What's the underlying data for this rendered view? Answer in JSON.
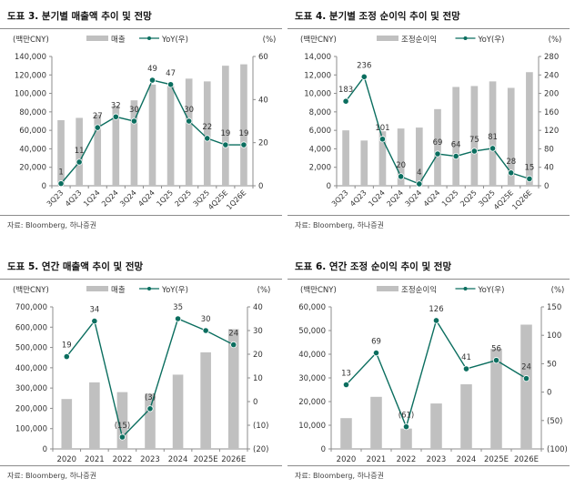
{
  "source_label": "자료: Bloomberg, 하나증권",
  "colors": {
    "bar": "#c0c0c0",
    "line": "#0b6e5f",
    "marker_stroke": "#ffffff",
    "axis": "#8c8c8c",
    "text": "#333333"
  },
  "chart_data": [
    {
      "id": "fig3",
      "type": "bar",
      "title": "도표 3. 분기별 매출액 추이 및 전망",
      "ylabel": "(백만CNY)",
      "y2label": "(%)",
      "legend": {
        "bar": "매출",
        "line": "YoY(우)",
        "placement": "top-center"
      },
      "categories": [
        "3Q23",
        "4Q23",
        "1Q24",
        "2Q24",
        "3Q24",
        "4Q24",
        "1Q25",
        "2Q25",
        "3Q25",
        "4Q25E",
        "1Q26E"
      ],
      "tick_rotate": true,
      "series": [
        {
          "name": "매출",
          "type": "bar",
          "axis": "left",
          "values": [
            71000,
            73500,
            77000,
            86500,
            92500,
            109500,
            108000,
            116000,
            113000,
            130000,
            131500
          ]
        },
        {
          "name": "YoY(우)",
          "type": "line",
          "axis": "right",
          "values": [
            1,
            11,
            27,
            32,
            30,
            49,
            47,
            30,
            22,
            19,
            19
          ],
          "labels": [
            "1",
            "11",
            "27",
            "32",
            "30",
            "49",
            "47",
            "30",
            "22",
            "19",
            "19"
          ]
        }
      ],
      "ylim": [
        0,
        140000
      ],
      "yticks": [
        0,
        20000,
        40000,
        60000,
        80000,
        100000,
        120000,
        140000
      ],
      "ytick_labels": [
        "0",
        "20,000",
        "40,000",
        "60,000",
        "80,000",
        "100,000",
        "120,000",
        "140,000"
      ],
      "y2lim": [
        0,
        60
      ],
      "y2ticks": [
        0,
        20,
        40,
        60
      ],
      "y2tick_labels": [
        "0",
        "20",
        "40",
        "60"
      ],
      "grid": false
    },
    {
      "id": "fig4",
      "type": "bar",
      "title": "도표 4. 분기별 조정 순이익 추이 및 전망",
      "ylabel": "(백만CNY)",
      "y2label": "(%)",
      "legend": {
        "bar": "조정순이익",
        "line": "YoY(우)",
        "placement": "top-center"
      },
      "categories": [
        "3Q23",
        "4Q23",
        "1Q24",
        "2Q24",
        "3Q24",
        "4Q24",
        "1Q25",
        "2Q25",
        "3Q25",
        "4Q25E",
        "1Q26E"
      ],
      "tick_rotate": true,
      "series": [
        {
          "name": "조정순이익",
          "type": "bar",
          "axis": "left",
          "values": [
            6000,
            4900,
            5900,
            6200,
            6300,
            8300,
            10700,
            10800,
            11300,
            10600,
            12300
          ]
        },
        {
          "name": "YoY(우)",
          "type": "line",
          "axis": "right",
          "values": [
            183,
            236,
            101,
            20,
            4,
            69,
            64,
            75,
            81,
            28,
            15
          ],
          "labels": [
            "183",
            "236",
            "101",
            "20",
            "4",
            "69",
            "64",
            "75",
            "81",
            "28",
            "15"
          ]
        }
      ],
      "ylim": [
        0,
        14000
      ],
      "yticks": [
        0,
        2000,
        4000,
        6000,
        8000,
        10000,
        12000,
        14000
      ],
      "ytick_labels": [
        "0",
        "2,000",
        "4,000",
        "6,000",
        "8,000",
        "10,000",
        "12,000",
        "14,000"
      ],
      "y2lim": [
        0,
        280
      ],
      "y2ticks": [
        0,
        40,
        80,
        120,
        160,
        200,
        240,
        280
      ],
      "y2tick_labels": [
        "0",
        "40",
        "80",
        "120",
        "160",
        "200",
        "240",
        "280"
      ],
      "grid": false
    },
    {
      "id": "fig5",
      "type": "bar",
      "title": "도표 5. 연간 매출액 추이 및 전망",
      "ylabel": "(백만CNY)",
      "y2label": "(%)",
      "legend": {
        "bar": "매출",
        "line": "YoY(우)",
        "placement": "top-center"
      },
      "categories": [
        "2020",
        "2021",
        "2022",
        "2023",
        "2024",
        "2025E",
        "2026E"
      ],
      "tick_rotate": false,
      "series": [
        {
          "name": "매출",
          "type": "bar",
          "axis": "left",
          "values": [
            246000,
            328000,
            280000,
            272000,
            366000,
            476000,
            590000
          ]
        },
        {
          "name": "YoY(우)",
          "type": "line",
          "axis": "right",
          "values": [
            19,
            34,
            -15,
            -3,
            35,
            30,
            24
          ],
          "labels": [
            "19",
            "34",
            "(15)",
            "(3)",
            "35",
            "30",
            "24"
          ]
        }
      ],
      "ylim": [
        0,
        700000
      ],
      "yticks": [
        0,
        100000,
        200000,
        300000,
        400000,
        500000,
        600000,
        700000
      ],
      "ytick_labels": [
        "0",
        "100,000",
        "200,000",
        "300,000",
        "400,000",
        "500,000",
        "600,000",
        "700,000"
      ],
      "y2lim": [
        -20,
        40
      ],
      "y2ticks": [
        -20,
        -10,
        0,
        10,
        20,
        30,
        40
      ],
      "y2tick_labels": [
        "(20)",
        "(10)",
        "0",
        "10",
        "20",
        "30",
        "40"
      ],
      "grid": false
    },
    {
      "id": "fig6",
      "type": "bar",
      "title": "도표 6. 연간 조정 순이익 추이 및 전망",
      "ylabel": "(백만CNY)",
      "y2label": "(%)",
      "legend": {
        "bar": "조정순이익",
        "line": "YoY(우)",
        "placement": "top-center"
      },
      "categories": [
        "2020",
        "2021",
        "2022",
        "2023",
        "2024",
        "2025E",
        "2026E"
      ],
      "tick_rotate": false,
      "series": [
        {
          "name": "조정순이익",
          "type": "bar",
          "axis": "left",
          "values": [
            13000,
            22000,
            8600,
            19200,
            27300,
            42300,
            52500
          ]
        },
        {
          "name": "YoY(우)",
          "type": "line",
          "axis": "right",
          "values": [
            13,
            69,
            -61,
            126,
            41,
            56,
            24
          ],
          "labels": [
            "13",
            "69",
            "(61)",
            "126",
            "41",
            "56",
            "24"
          ]
        }
      ],
      "ylim": [
        0,
        60000
      ],
      "yticks": [
        0,
        10000,
        20000,
        30000,
        40000,
        50000,
        60000
      ],
      "ytick_labels": [
        "0",
        "10,000",
        "20,000",
        "30,000",
        "40,000",
        "50,000",
        "60,000"
      ],
      "y2lim": [
        -100,
        150
      ],
      "y2ticks": [
        -100,
        -50,
        0,
        50,
        100,
        150
      ],
      "y2tick_labels": [
        "(100)",
        "(50)",
        "0",
        "50",
        "100",
        "150"
      ],
      "grid": false
    }
  ]
}
